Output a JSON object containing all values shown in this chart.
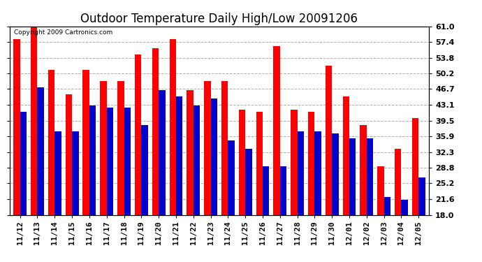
{
  "title": "Outdoor Temperature Daily High/Low 20091206",
  "copyright": "Copyright 2009 Cartronics.com",
  "dates": [
    "11/12",
    "11/13",
    "11/14",
    "11/15",
    "11/16",
    "11/17",
    "11/18",
    "11/19",
    "11/20",
    "11/21",
    "11/22",
    "11/23",
    "11/24",
    "11/25",
    "11/26",
    "11/27",
    "11/28",
    "11/29",
    "11/30",
    "12/01",
    "12/02",
    "12/03",
    "12/04",
    "12/05"
  ],
  "highs": [
    58.0,
    61.0,
    51.0,
    45.5,
    51.0,
    48.5,
    48.5,
    54.5,
    56.0,
    58.0,
    46.5,
    48.5,
    48.5,
    42.0,
    41.5,
    56.5,
    42.0,
    41.5,
    52.0,
    45.0,
    38.5,
    29.0,
    33.0,
    40.0
  ],
  "lows": [
    41.5,
    47.0,
    37.0,
    37.0,
    43.0,
    42.5,
    42.5,
    38.5,
    46.5,
    45.0,
    43.0,
    44.5,
    35.0,
    33.0,
    29.0,
    29.0,
    37.0,
    37.0,
    36.5,
    35.5,
    35.5,
    22.0,
    21.5,
    26.5
  ],
  "high_color": "#ff0000",
  "low_color": "#0000cc",
  "bg_color": "#ffffff",
  "grid_color": "#b0b0b0",
  "ymin": 18.0,
  "ymax": 61.0,
  "yticks": [
    18.0,
    21.6,
    25.2,
    28.8,
    32.3,
    35.9,
    39.5,
    43.1,
    46.7,
    50.2,
    53.8,
    57.4,
    61.0
  ],
  "bar_width": 0.38,
  "title_fontsize": 12,
  "tick_fontsize": 8,
  "copyright_fontsize": 6.5
}
